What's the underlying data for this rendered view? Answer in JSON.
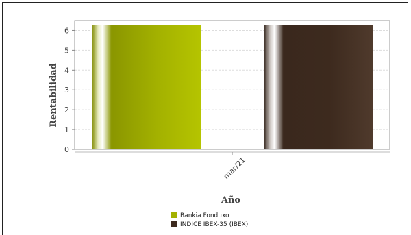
{
  "chart_data": {
    "type": "bar",
    "categories": [
      "mar/21"
    ],
    "series": [
      {
        "name": "Bankia Fonduxo",
        "values": [
          6.27
        ],
        "color": "#a3b100"
      },
      {
        "name": "INDICE IBEX-35 (IBEX)",
        "values": [
          6.27
        ],
        "color": "#3d2a1e"
      }
    ],
    "xlabel": "Año",
    "ylabel": "Rentabilidad",
    "ylim": [
      0,
      6.5
    ],
    "yticks": [
      0,
      1,
      2,
      3,
      4,
      5,
      6
    ],
    "grid": true,
    "legend_position": "bottom-center"
  }
}
